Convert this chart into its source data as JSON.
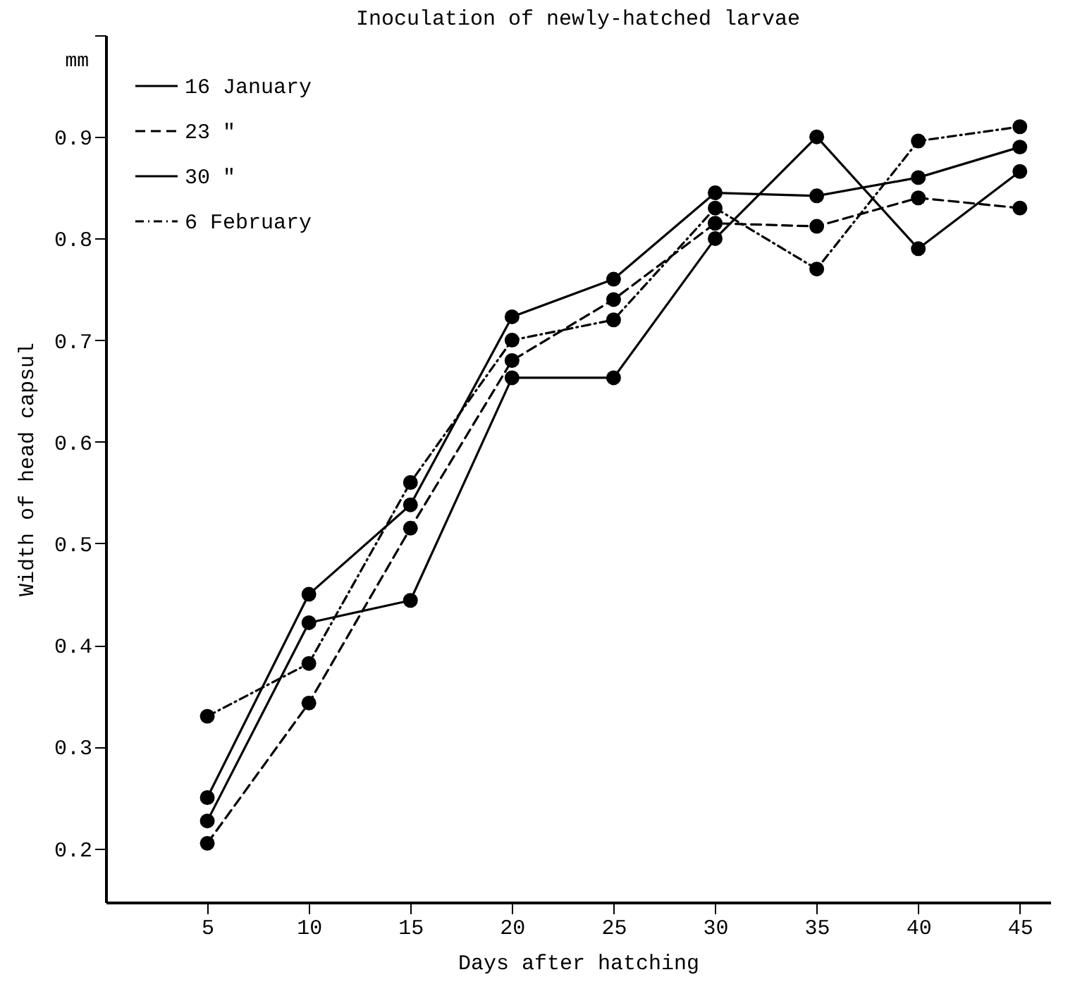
{
  "chart_data": {
    "type": "line",
    "title": "Inoculation of newly-hatched larvae",
    "xlabel": "Days after hatching",
    "ylabel": "Width of head capsul",
    "annotations": [
      "mm"
    ],
    "x": [
      5,
      10,
      15,
      20,
      25,
      30,
      35,
      40,
      45
    ],
    "xlim": [
      0,
      46.5
    ],
    "xticks": [
      5,
      10,
      15,
      20,
      25,
      30,
      35,
      40,
      45
    ],
    "ylim": [
      0.147,
      1.0
    ],
    "yticks": [
      0.2,
      0.3,
      0.4,
      0.5,
      0.6,
      0.7,
      0.8,
      0.9,
      {
        "value": 1.0,
        "label": null
      }
    ],
    "grid": false,
    "legend": "top left",
    "marker": "circle",
    "series": [
      {
        "name": "16 January",
        "color": "#000000",
        "line_style": "solid",
        "values": [
          0.227,
          0.422,
          0.444,
          0.663,
          0.663,
          0.8,
          0.9,
          0.79,
          0.866
        ]
      },
      {
        "name": "23 \"",
        "color": "#000000",
        "line_style": "dashed",
        "values": [
          0.205,
          0.343,
          0.515,
          0.68,
          0.74,
          0.815,
          0.812,
          0.84,
          0.83
        ]
      },
      {
        "name": "30 \"",
        "color": "#000000",
        "line_style": "solid",
        "values": [
          0.25,
          0.45,
          0.538,
          0.723,
          0.76,
          0.845,
          0.842,
          0.86,
          0.89
        ]
      },
      {
        "name": "6 February",
        "color": "#000000",
        "line_style": "dotted",
        "values": [
          0.33,
          0.382,
          0.56,
          0.7,
          0.72,
          0.83,
          0.77,
          0.896,
          0.91
        ]
      }
    ]
  }
}
